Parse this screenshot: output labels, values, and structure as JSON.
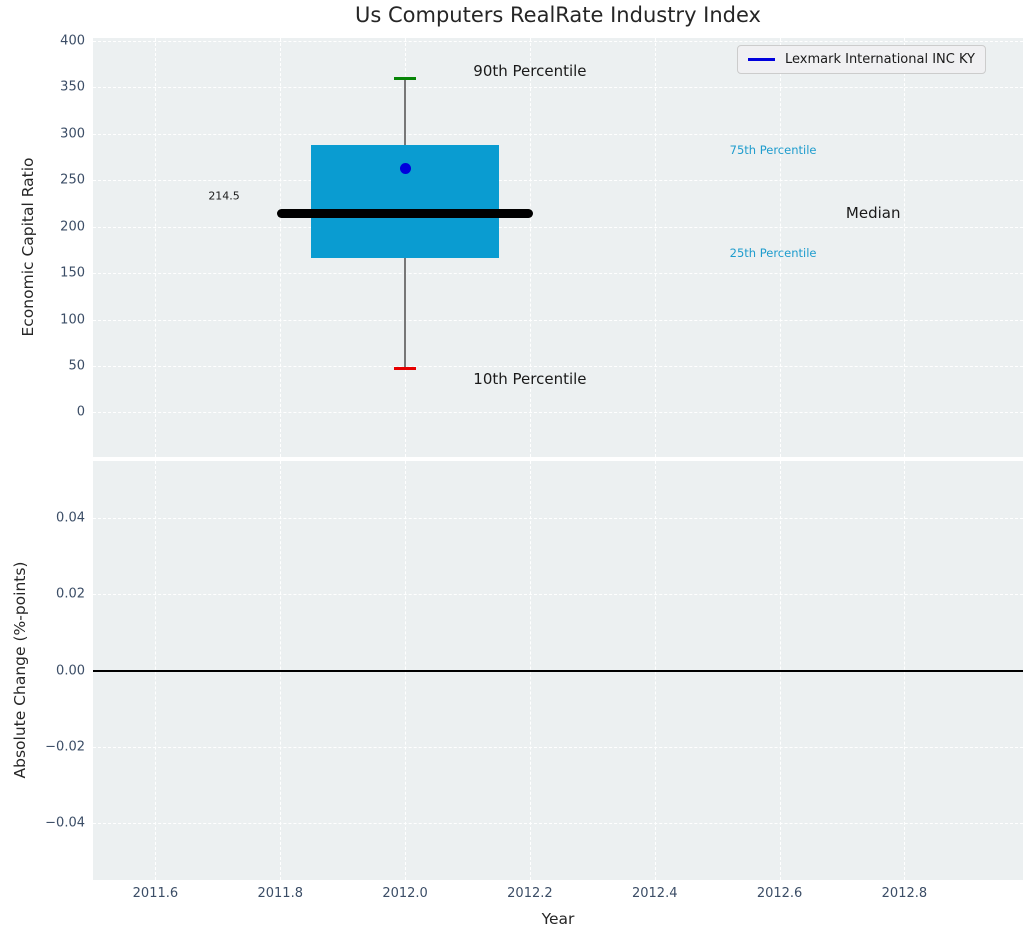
{
  "title": "Us Computers RealRate Industry Index",
  "legend": {
    "label": "Lexmark International INC KY",
    "line_color": "#0000dd"
  },
  "colors": {
    "axes_bg": "#ecf0f1",
    "grid": "#ffffff",
    "tick_label": "#3b4d66",
    "box_fill": "#0a9cd1",
    "median_line": "#000000",
    "whisker": "#777777",
    "p90_cap": "#078507",
    "p10_cap": "#e60000",
    "company_marker": "#0000dd",
    "percentile_text": "#1e9ccd",
    "black_text": "#1a1a1a"
  },
  "chart_data": [
    {
      "type": "boxplot",
      "title": "Us Computers RealRate Industry Index",
      "ylabel": "Economic Capital Ratio",
      "xlim": [
        2011.5,
        2012.99
      ],
      "ylim": [
        -48,
        403
      ],
      "grid": "dashed-white",
      "ytick_values": [
        0,
        50,
        100,
        150,
        200,
        250,
        300,
        350,
        400
      ],
      "ytick_labels": [
        "0",
        "50",
        "100",
        "150",
        "200",
        "250",
        "300",
        "350",
        "400"
      ],
      "xtick_values": [
        2011.6,
        2011.8,
        2012.0,
        2012.2,
        2012.4,
        2012.6,
        2012.8
      ],
      "box": {
        "x_center": 2012.0,
        "p10": 47,
        "p25": 166,
        "median": 214.5,
        "p75": 288,
        "p90": 359,
        "box_halfwidth": 0.15,
        "median_halfwidth": 0.205,
        "cap_halfwidth": 0.0175
      },
      "company_point": {
        "name": "Lexmark International INC KY",
        "x": 2012.0,
        "y": 263
      },
      "annotations": [
        {
          "text": "90th Percentile",
          "x": 2012.2,
          "y": 368,
          "color": "#1a1a1a",
          "size": 15,
          "anchor": "middle"
        },
        {
          "text": "10th Percentile",
          "x": 2012.2,
          "y": 36,
          "color": "#1a1a1a",
          "size": 15,
          "anchor": "middle"
        },
        {
          "text": "75th Percentile",
          "x": 2012.52,
          "y": 282,
          "color": "#1e9ccd",
          "size": 11.5,
          "anchor": "start"
        },
        {
          "text": "25th Percentile",
          "x": 2012.52,
          "y": 172,
          "color": "#1e9ccd",
          "size": 11.5,
          "anchor": "start"
        },
        {
          "text": "Median",
          "x": 2012.75,
          "y": 215,
          "color": "#1a1a1a",
          "size": 15,
          "anchor": "middle"
        },
        {
          "text": "214.5",
          "x": 2011.71,
          "y": 233,
          "color": "#1a1a1a",
          "size": 11,
          "anchor": "middle"
        }
      ],
      "legend_entries": [
        "Lexmark International INC KY"
      ],
      "legend_position": "upper right"
    },
    {
      "type": "line",
      "ylabel": "Absolute Change (%-points)",
      "xlabel": "Year",
      "xlim": [
        2011.5,
        2012.99
      ],
      "ylim": [
        -0.055,
        0.055
      ],
      "grid": "dashed-white",
      "ytick_values": [
        0.04,
        0.02,
        0.0,
        -0.02,
        -0.04
      ],
      "ytick_labels": [
        "0.04",
        "0.02",
        "0.00",
        "−0.02",
        "−0.04"
      ],
      "xtick_values": [
        2011.6,
        2011.8,
        2012.0,
        2012.2,
        2012.4,
        2012.6,
        2012.8
      ],
      "xtick_labels": [
        "2011.6",
        "2011.8",
        "2012.0",
        "2012.2",
        "2012.4",
        "2012.6",
        "2012.8"
      ],
      "series": [
        {
          "name": "zero-line",
          "x": [
            2011.5,
            2012.99
          ],
          "y": [
            0.0,
            0.0
          ],
          "color": "#000000"
        }
      ]
    }
  ]
}
